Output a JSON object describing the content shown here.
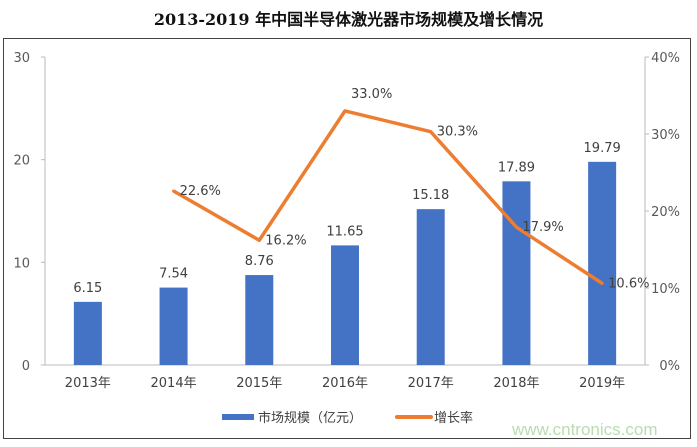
{
  "chart_data": {
    "type": "bar+line",
    "title": "2013-2019 年中国半导体激光器市场规模及增长情况",
    "categories": [
      "2013年",
      "2014年",
      "2015年",
      "2016年",
      "2017年",
      "2018年",
      "2019年"
    ],
    "series": [
      {
        "name": "市场规模（亿元）",
        "type": "bar",
        "axis": "left",
        "color": "#4472c4",
        "values": [
          6.15,
          7.54,
          8.76,
          11.65,
          15.18,
          17.89,
          19.79
        ],
        "labels": [
          "6.15",
          "7.54",
          "8.76",
          "11.65",
          "15.18",
          "17.89",
          "19.79"
        ]
      },
      {
        "name": "增长率",
        "type": "line",
        "axis": "right",
        "color": "#ed7d31",
        "values": [
          null,
          22.6,
          16.2,
          33.0,
          30.3,
          17.9,
          10.6
        ],
        "labels": [
          "",
          "22.6%",
          "16.2%",
          "33.0%",
          "30.3%",
          "17.9%",
          "10.6%"
        ]
      }
    ],
    "y_left": {
      "range": [
        0,
        30
      ],
      "ticks": [
        "0",
        "10",
        "20",
        "30"
      ]
    },
    "y_right": {
      "range": [
        0,
        40
      ],
      "ticks": [
        "0%",
        "10%",
        "20%",
        "30%",
        "40%"
      ]
    },
    "grid": false,
    "legend": "bottom"
  },
  "watermark": "www.cntronics.com"
}
